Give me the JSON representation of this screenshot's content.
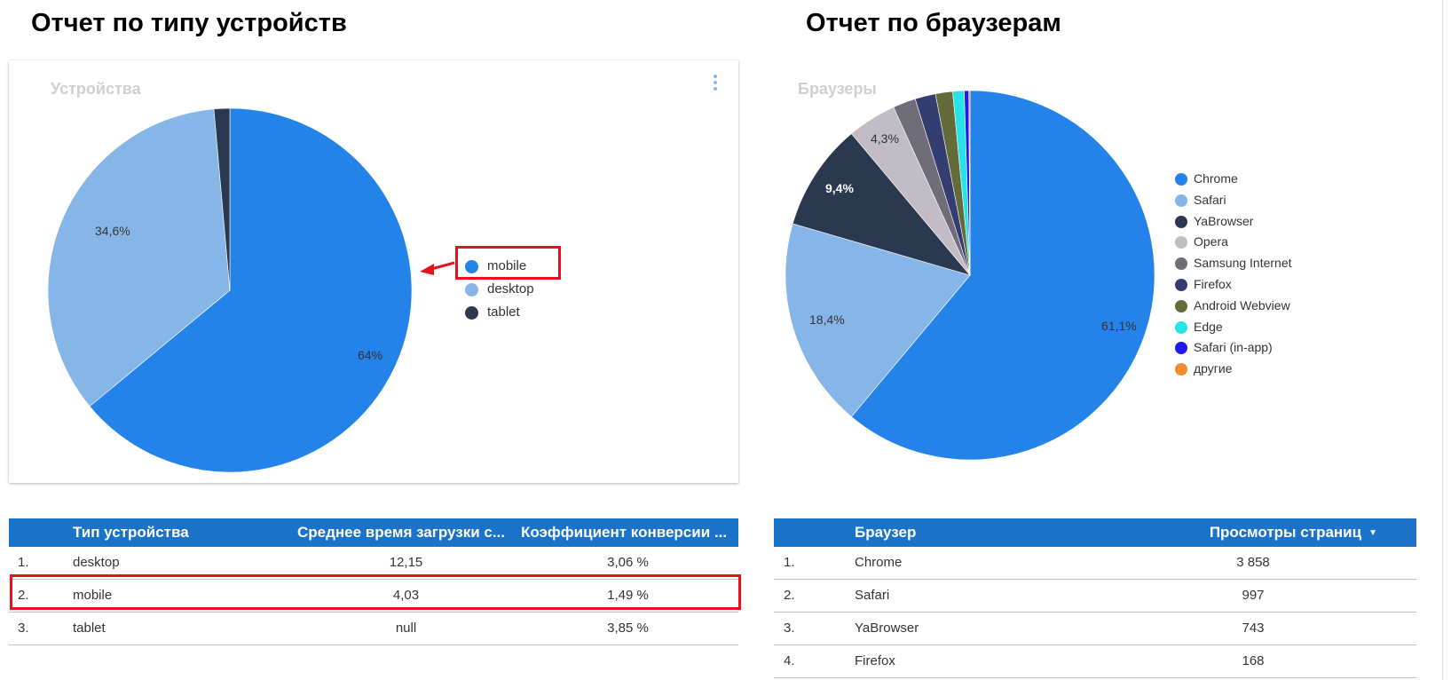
{
  "headings": {
    "devices": "Отчет по типу устройств",
    "browsers": "Отчет по браузерам"
  },
  "device_chart": {
    "title": "Устройства",
    "label_mobile": "64%",
    "label_desktop": "34,6%"
  },
  "device_legend": [
    {
      "label": "mobile",
      "color": "#2383e9"
    },
    {
      "label": "desktop",
      "color": "#86b6e7"
    },
    {
      "label": "tablet",
      "color": "#2a3950"
    }
  ],
  "browser_chart": {
    "title": "Браузеры",
    "label_chrome": "61,1%",
    "label_safari": "18,4%",
    "label_yabrowser": "9,4%",
    "label_opera": "4,3%"
  },
  "browser_legend": [
    {
      "label": "Chrome",
      "color": "#2383e9"
    },
    {
      "label": "Safari",
      "color": "#86b6e7"
    },
    {
      "label": "YaBrowser",
      "color": "#2a3950"
    },
    {
      "label": "Opera",
      "color": "#c1bcc5"
    },
    {
      "label": "Samsung Internet",
      "color": "#6f6e78"
    },
    {
      "label": "Firefox",
      "color": "#343d70"
    },
    {
      "label": "Android Webview",
      "color": "#656a3a"
    },
    {
      "label": "Edge",
      "color": "#27e3e8"
    },
    {
      "label": "Safari (in-app)",
      "color": "#1f1aeb"
    },
    {
      "label": "другие",
      "color": "#f28b2c"
    }
  ],
  "chart_data": [
    {
      "type": "pie",
      "title": "Устройства",
      "categories": [
        "mobile",
        "desktop",
        "tablet"
      ],
      "values": [
        64.0,
        34.6,
        1.4
      ],
      "colors": [
        "#2383e9",
        "#86b6e7",
        "#2a3950"
      ],
      "legend": "right"
    },
    {
      "type": "pie",
      "title": "Браузеры",
      "categories": [
        "Chrome",
        "Safari",
        "YaBrowser",
        "Opera",
        "Samsung Internet",
        "Firefox",
        "Android Webview",
        "Edge",
        "Safari (in-app)",
        "другие"
      ],
      "values": [
        61.1,
        18.4,
        9.4,
        4.3,
        2.0,
        1.8,
        1.5,
        1.0,
        0.4,
        0.1
      ],
      "colors": [
        "#2383e9",
        "#86b6e7",
        "#2a3950",
        "#c1bcc5",
        "#6f6e78",
        "#343d70",
        "#656a3a",
        "#27e3e8",
        "#1f1aeb",
        "#f28b2c"
      ],
      "legend": "right"
    }
  ],
  "device_table": {
    "headers": [
      "Тип устройства",
      "Среднее время загрузки с...",
      "Коэффициент конверсии ..."
    ],
    "rows": [
      {
        "n": "1.",
        "device": "desktop",
        "load": "12,15",
        "conv": "3,06 %"
      },
      {
        "n": "2.",
        "device": "mobile",
        "load": "4,03",
        "conv": "1,49 %"
      },
      {
        "n": "3.",
        "device": "tablet",
        "load": "null",
        "conv": "3,85 %"
      }
    ]
  },
  "browser_table": {
    "headers": [
      "Браузер",
      "Просмотры страниц"
    ],
    "sort_icon": "sort-desc-icon",
    "rows": [
      {
        "n": "1.",
        "browser": "Chrome",
        "views": "3 858"
      },
      {
        "n": "2.",
        "browser": "Safari",
        "views": "997"
      },
      {
        "n": "3.",
        "browser": "YaBrowser",
        "views": "743"
      },
      {
        "n": "4.",
        "browser": "Firefox",
        "views": "168"
      }
    ]
  }
}
